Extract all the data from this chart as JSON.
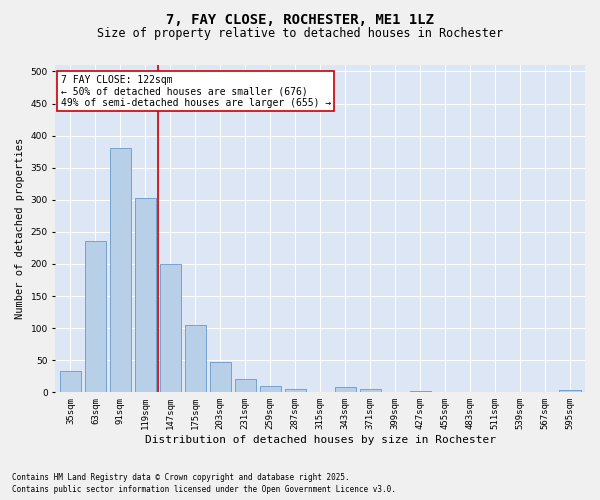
{
  "title1": "7, FAY CLOSE, ROCHESTER, ME1 1LZ",
  "title2": "Size of property relative to detached houses in Rochester",
  "xlabel": "Distribution of detached houses by size in Rochester",
  "ylabel": "Number of detached properties",
  "categories": [
    "35sqm",
    "63sqm",
    "91sqm",
    "119sqm",
    "147sqm",
    "175sqm",
    "203sqm",
    "231sqm",
    "259sqm",
    "287sqm",
    "315sqm",
    "343sqm",
    "371sqm",
    "399sqm",
    "427sqm",
    "455sqm",
    "483sqm",
    "511sqm",
    "539sqm",
    "567sqm",
    "595sqm"
  ],
  "values": [
    33,
    236,
    380,
    303,
    200,
    105,
    48,
    20,
    10,
    5,
    0,
    9,
    5,
    0,
    2,
    0,
    0,
    0,
    0,
    0,
    3
  ],
  "bar_color": "#b8cfe8",
  "bar_edge_color": "#6699cc",
  "vline_x": 3.5,
  "annotation_title": "7 FAY CLOSE: 122sqm",
  "annotation_line1": "← 50% of detached houses are smaller (676)",
  "annotation_line2": "49% of semi-detached houses are larger (655) →",
  "annotation_box_color": "#ffffff",
  "annotation_box_edge": "#cc0000",
  "vline_color": "#cc0000",
  "footnote1": "Contains HM Land Registry data © Crown copyright and database right 2025.",
  "footnote2": "Contains public sector information licensed under the Open Government Licence v3.0.",
  "ylim": [
    0,
    510
  ],
  "yticks": [
    0,
    50,
    100,
    150,
    200,
    250,
    300,
    350,
    400,
    450,
    500
  ],
  "fig_bg": "#f0f0f0",
  "plot_bg": "#dce6f5",
  "title1_fontsize": 10,
  "title2_fontsize": 8.5,
  "xlabel_fontsize": 8,
  "ylabel_fontsize": 7.5,
  "tick_fontsize": 6.5,
  "annot_fontsize": 7,
  "footnote_fontsize": 5.5
}
